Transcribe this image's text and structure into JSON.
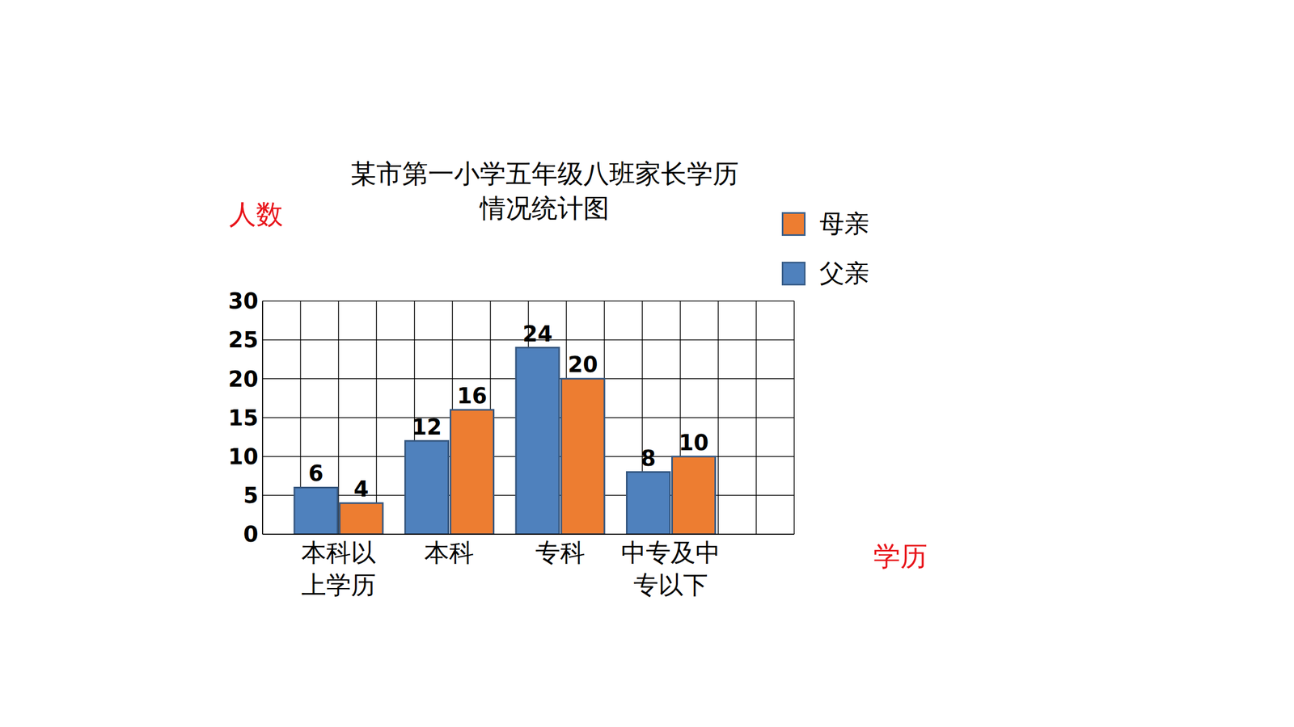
{
  "chart_data": {
    "type": "bar",
    "title": "某市第一小学五年级八班家长学历情况统计图",
    "x_label": "学历",
    "y_label": "人数",
    "categories": [
      "本科以上学历",
      "本科",
      "专科",
      "中专及中专以下"
    ],
    "series": [
      {
        "name": "父亲",
        "color": "#4f81bd",
        "values": [
          6,
          12,
          24,
          8
        ]
      },
      {
        "name": "母亲",
        "color": "#ed7d31",
        "values": [
          4,
          16,
          20,
          10
        ]
      }
    ],
    "ylim": [
      0,
      30
    ],
    "yticks": [
      0,
      5,
      10,
      15,
      20,
      25,
      30
    ],
    "grid": true,
    "legend": "upper right",
    "data_labels": true
  }
}
